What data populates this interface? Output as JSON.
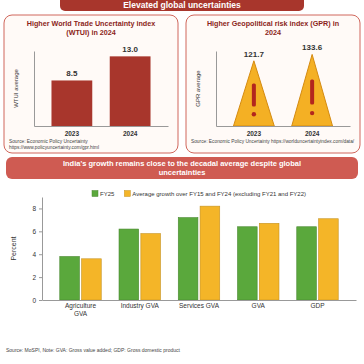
{
  "title": "Elevated global uncertainties",
  "chart_data": [
    {
      "type": "bar",
      "title": "Higher World Trade Uncertainty index (WTUI) in 2024",
      "y_label": "WTUI average",
      "categories": [
        "2023",
        "2024"
      ],
      "values": [
        8.5,
        13.0
      ],
      "value_labels": [
        "8.5",
        "13.0"
      ],
      "color": "#a8362c",
      "ylim": [
        0,
        14
      ],
      "yticks": [],
      "tick_labels": "x",
      "data_labels": true,
      "annotations": [
        "Source: Economic Policy Uncertainty https://www.policyuncertainty.com/gpr.html"
      ]
    },
    {
      "type": "bar",
      "title": "Higher Geopolitical risk index (GPR) in 2024",
      "y_label": "GPR average",
      "categories": [
        "2023",
        "2024"
      ],
      "values": [
        121.7,
        133.6
      ],
      "color": "#f4b024",
      "marker": "triangle",
      "ylim": [
        0,
        140
      ],
      "yticks": [],
      "tick_labels": "x",
      "data_labels": true,
      "annotations": [
        "Source: Economic Policy Uncertainty https://worlduncertaintyindex.com/data/"
      ]
    },
    {
      "type": "bar",
      "title": "India's growth remains close to the decadal average despite global uncertainties",
      "y_label": "Percent",
      "categories": [
        "Agriculture GVA",
        "Industry GVA",
        "Services GVA",
        "GVA",
        "GDP"
      ],
      "series": [
        {
          "name": "FY25",
          "color": "#5aa83c",
          "values": [
            3.8,
            6.2,
            7.2,
            6.4,
            6.4
          ]
        },
        {
          "name": "Average growth over FY15 and FY24 (excluding FY21 and FY22)",
          "color": "#f4b528",
          "values": [
            3.6,
            5.8,
            8.2,
            6.7,
            7.1
          ]
        }
      ],
      "ylim": [
        0,
        9
      ],
      "yticks": [
        0,
        2,
        4,
        6,
        8
      ],
      "grid": false,
      "legend": "top",
      "annotations": [
        "Source: MoSPI, Note: GVA: Gross value added; GDP: Gross domestic product"
      ]
    }
  ]
}
